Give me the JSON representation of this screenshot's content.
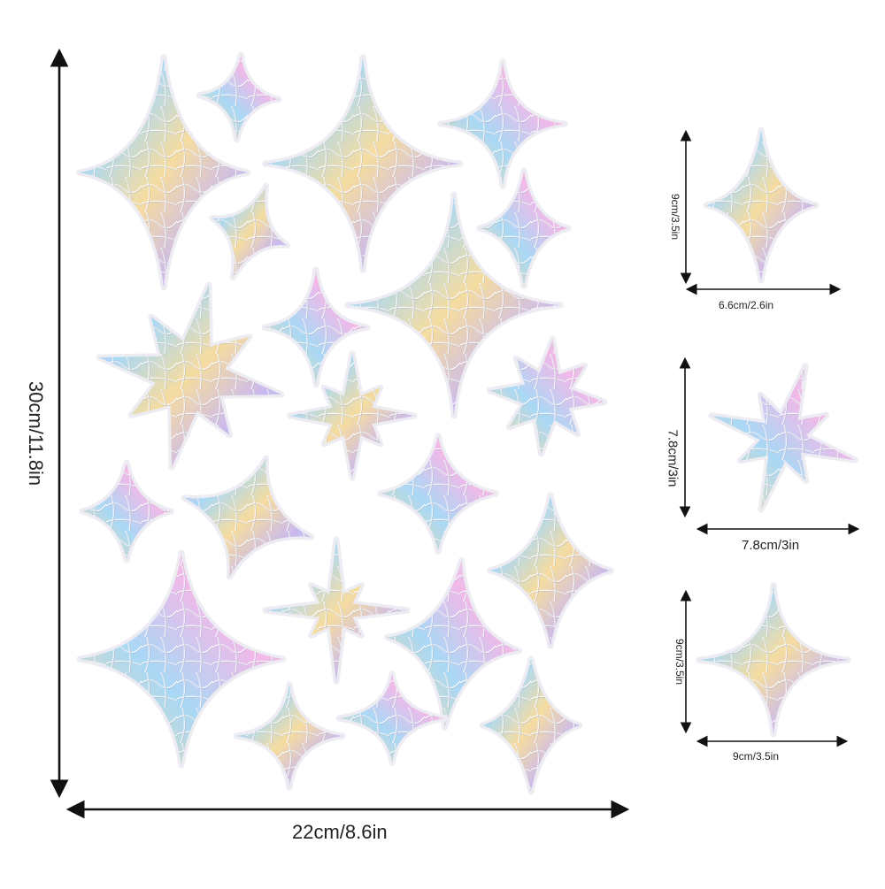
{
  "dimensions": {
    "sheet_width": "22cm/8.6in",
    "sheet_height": "30cm/11.8in",
    "sticker_1_height": "9cm/3.5in",
    "sticker_1_width": "6.6cm/2.6in",
    "sticker_2_height": "7.8cm/3in",
    "sticker_2_width": "7.8cm/3in",
    "sticker_3_height": "9cm/3.5in",
    "sticker_3_width": "9cm/3.5in"
  },
  "colors": {
    "arrow": "#111111",
    "holo_pink": "#f2b8e8",
    "holo_blue": "#a9d8f5",
    "holo_gold": "#f5dca0",
    "holo_lilac": "#c9b8f0",
    "holo_mint": "#bfeee0"
  }
}
